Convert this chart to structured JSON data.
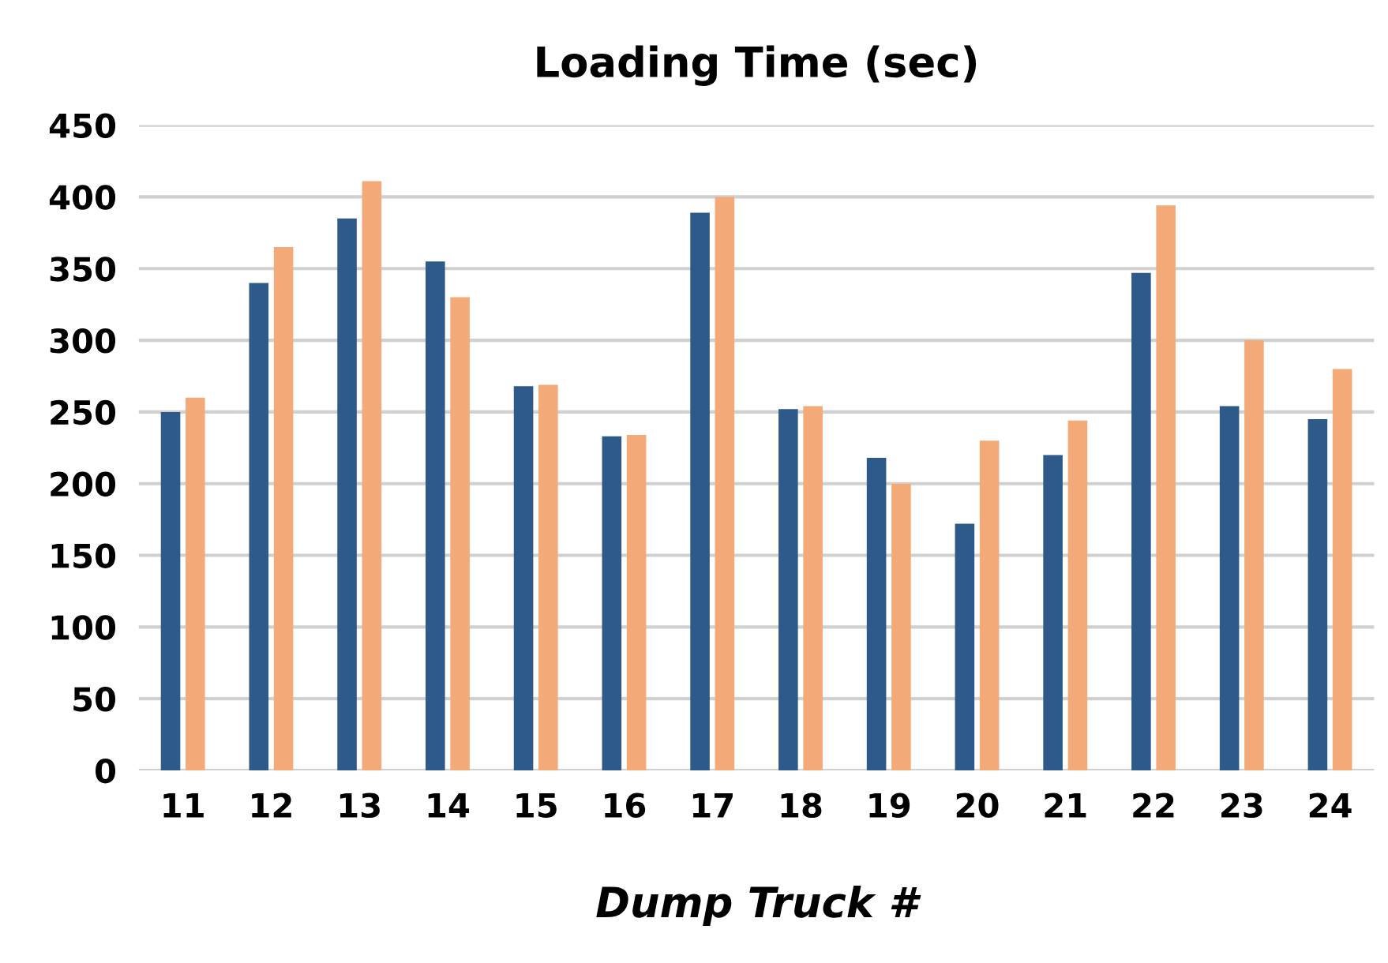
{
  "chart_data": {
    "type": "bar",
    "title": "Loading Time (sec)",
    "xlabel": "Dump Truck #",
    "categories": [
      "11",
      "12",
      "13",
      "14",
      "15",
      "16",
      "17",
      "18",
      "19",
      "20",
      "21",
      "22",
      "23",
      "24"
    ],
    "series": [
      {
        "color": "#2e5a8a",
        "values": [
          250,
          340,
          385,
          355,
          268,
          233,
          389,
          252,
          218,
          172,
          220,
          347,
          254,
          245
        ]
      },
      {
        "color": "#f4aa78",
        "values": [
          260,
          365,
          411,
          330,
          269,
          234,
          400,
          254,
          200,
          230,
          244,
          394,
          300,
          280
        ]
      }
    ],
    "ylim": [
      0,
      450
    ],
    "yticks": [
      0,
      50,
      100,
      150,
      200,
      250,
      300,
      350,
      400,
      450
    ],
    "grid": "y"
  }
}
